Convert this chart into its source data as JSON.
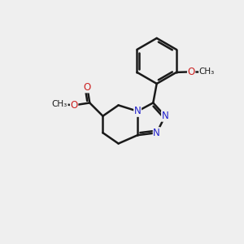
{
  "background_color": "#efefef",
  "bond_color": "#1a1a1a",
  "nitrogen_color": "#2222cc",
  "oxygen_color": "#cc2222",
  "bond_width": 1.8,
  "figsize": [
    3.0,
    3.0
  ],
  "dpi": 100,
  "xlim": [
    0,
    10
  ],
  "ylim": [
    0,
    10
  ]
}
